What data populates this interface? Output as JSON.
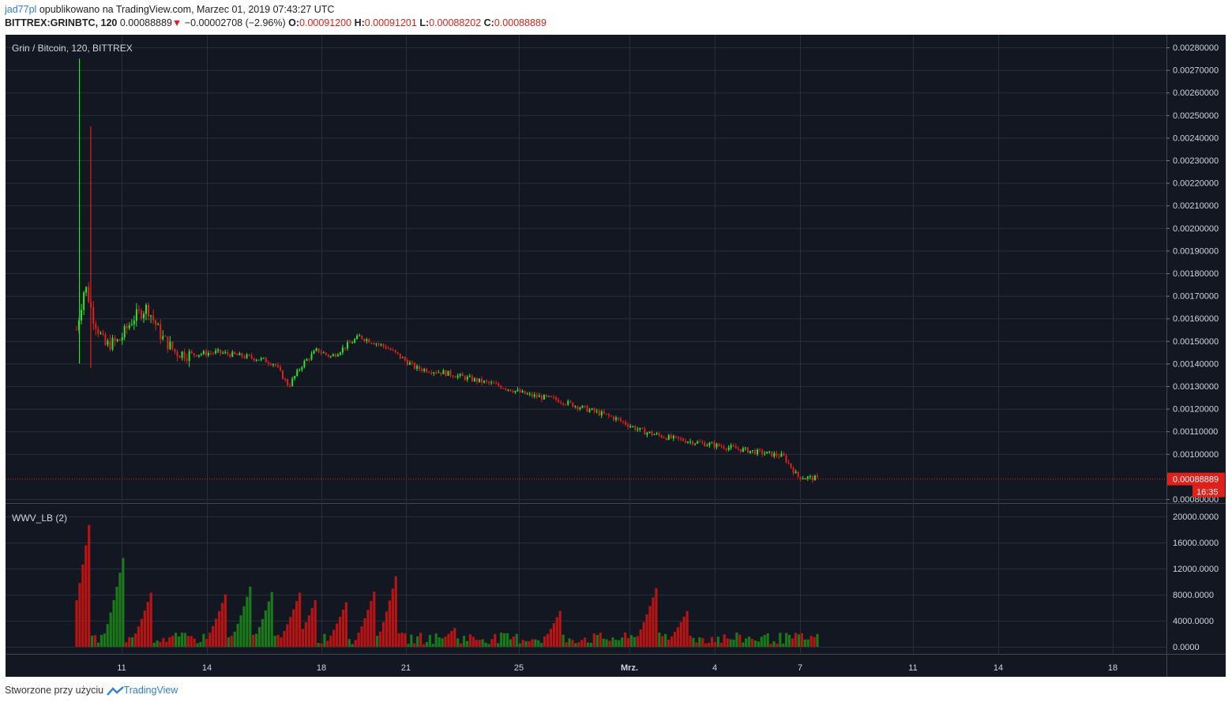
{
  "header": {
    "user": "jad77pl",
    "published": "opublikowano na TradingView.com, Marzec 01, 2019 07:43:27 UTC",
    "symbol": "BITTREX:GRINBTC, 120",
    "last": "0.00088889",
    "change": "−0.00002708 (−2.96%)",
    "o_label": "O:",
    "o": "0.00091200",
    "h_label": "H:",
    "h": "0.00091201",
    "l_label": "L:",
    "l": "0.00088202",
    "c_label": "C:",
    "c": "0.00088889"
  },
  "footer": {
    "created": "Stworzone przy użyciu",
    "brand": "TradingView"
  },
  "colors": {
    "background": "#131722",
    "grid": "#2a2e39",
    "up": "#29e629",
    "down": "#e0201b",
    "vol_up": "#1a7a1a",
    "vol_down": "#b81414",
    "axis_text": "#d1d4dc"
  },
  "chart_data": {
    "type": "candlestick",
    "title": "Grin / Bitcoin, 120, BITTREX",
    "price_axis": {
      "ticks": [
        "0.00280000",
        "0.00270000",
        "0.00260000",
        "0.00250000",
        "0.00240000",
        "0.00230000",
        "0.00220000",
        "0.00210000",
        "0.00200000",
        "0.00190000",
        "0.00180000",
        "0.00170000",
        "0.00160000",
        "0.00150000",
        "0.00140000",
        "0.00130000",
        "0.00120000",
        "0.00110000",
        "0.00100000",
        "0.00080000"
      ],
      "ylim": [
        0.0008,
        0.00282
      ],
      "last_price_label": "0.00088889",
      "countdown_label": "16:35",
      "last_price": 0.00088889
    },
    "x_axis": {
      "labels": [
        "11",
        "14",
        "18",
        "21",
        "25",
        "Mrz.",
        "4",
        "7",
        "11",
        "14",
        "18"
      ]
    },
    "price_path": [
      [
        0.0,
        0.00155
      ],
      [
        0.3,
        0.00175
      ],
      [
        0.6,
        0.0016
      ],
      [
        1.0,
        0.00148
      ],
      [
        1.5,
        0.0015
      ],
      [
        2.0,
        0.0016
      ],
      [
        2.5,
        0.00165
      ],
      [
        3.0,
        0.00152
      ],
      [
        3.5,
        0.00145
      ],
      [
        4.0,
        0.00144
      ],
      [
        5.0,
        0.00145
      ],
      [
        6.0,
        0.00143
      ],
      [
        6.5,
        0.00142
      ],
      [
        7.0,
        0.0014
      ],
      [
        7.5,
        0.0013
      ],
      [
        8.0,
        0.0014
      ],
      [
        8.5,
        0.00146
      ],
      [
        9.0,
        0.00143
      ],
      [
        10.0,
        0.00152
      ],
      [
        11.0,
        0.00147
      ],
      [
        12.0,
        0.00138
      ],
      [
        13.0,
        0.00136
      ],
      [
        14.0,
        0.00133
      ],
      [
        15.0,
        0.0013
      ],
      [
        16.0,
        0.00126
      ],
      [
        17.0,
        0.00124
      ],
      [
        18.0,
        0.0012
      ],
      [
        19.0,
        0.00116
      ],
      [
        20.0,
        0.0011
      ],
      [
        21.0,
        0.00107
      ],
      [
        22.0,
        0.00105
      ],
      [
        23.0,
        0.00103
      ],
      [
        24.0,
        0.00101
      ],
      [
        25.0,
        0.00099
      ],
      [
        25.5,
        0.0009
      ],
      [
        26.2,
        0.00089
      ]
    ],
    "spikes": [
      [
        0.1,
        0.00275,
        0.0014
      ],
      [
        0.5,
        0.00245,
        0.00138
      ]
    ],
    "volume_indicator": {
      "name": "WWV_LB (2)",
      "ticks": [
        "20000.0000",
        "16000.0000",
        "12000.0000",
        "8000.0000",
        "4000.0000",
        "0.0000"
      ],
      "ylim": [
        0,
        21000
      ],
      "peaks": [
        {
          "x": 0.5,
          "v": 20500,
          "color": "down"
        },
        {
          "x": 1.7,
          "v": 14800,
          "color": "up"
        },
        {
          "x": 2.7,
          "v": 9200,
          "color": "down"
        },
        {
          "x": 5.3,
          "v": 8500,
          "color": "down"
        },
        {
          "x": 6.2,
          "v": 10100,
          "color": "up"
        },
        {
          "x": 7.0,
          "v": 9700,
          "color": "up"
        },
        {
          "x": 7.9,
          "v": 8400,
          "color": "down"
        },
        {
          "x": 8.5,
          "v": 7800,
          "color": "down"
        },
        {
          "x": 9.6,
          "v": 7500,
          "color": "down"
        },
        {
          "x": 10.6,
          "v": 9500,
          "color": "down"
        },
        {
          "x": 11.4,
          "v": 12800,
          "color": "down"
        },
        {
          "x": 13.4,
          "v": 3000,
          "color": "down"
        },
        {
          "x": 17.2,
          "v": 6400,
          "color": "down"
        },
        {
          "x": 20.5,
          "v": 9000,
          "color": "down"
        },
        {
          "x": 21.6,
          "v": 5500,
          "color": "down"
        }
      ]
    }
  }
}
